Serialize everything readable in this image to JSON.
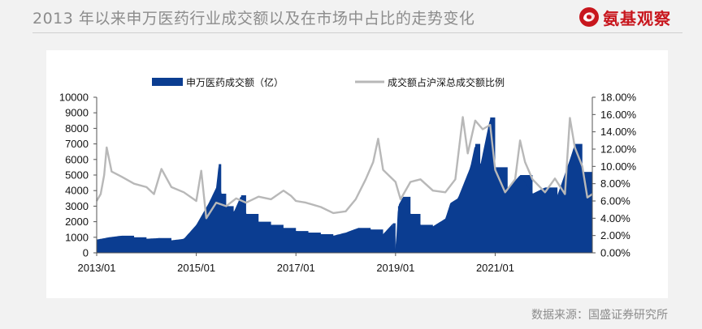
{
  "header": {
    "title": "2013 年以来申万医药行业成交额以及在市场中占比的走势变化",
    "brand": "氨基观察",
    "brand_icon": "swirl-logo-icon"
  },
  "footer": {
    "source": "数据来源：国盛证券研究所"
  },
  "colors": {
    "bar": "#0b3d91",
    "line": "#b8b8b8",
    "brand": "#c8161d",
    "title": "#8c8c8c"
  },
  "chart_data": {
    "type": "bar",
    "grid": false,
    "legend_position": "top",
    "x_ticks": [
      "2013/01",
      "2015/01",
      "2017/01",
      "2019/01",
      "2021/01"
    ],
    "x_range": [
      2013.0,
      2022.95
    ],
    "y_left": {
      "range": [
        0,
        10000
      ],
      "ticks": [
        "10000",
        "9000",
        "8000",
        "7000",
        "6000",
        "5000",
        "4000",
        "3000",
        "2000",
        "1000",
        "0"
      ]
    },
    "y_right": {
      "range": [
        0,
        18
      ],
      "ticks": [
        "18.00%",
        "16.00%",
        "14.00%",
        "12.00%",
        "10.00%",
        "8.00%",
        "6.00%",
        "4.00%",
        "2.00%",
        "0.00%"
      ]
    },
    "series": [
      {
        "name": "申万医药成交额（亿）",
        "kind": "bar",
        "axis": "left",
        "points": [
          [
            2013.0,
            850
          ],
          [
            2013.25,
            1000
          ],
          [
            2013.5,
            1100
          ],
          [
            2013.75,
            1000
          ],
          [
            2014.0,
            900
          ],
          [
            2014.25,
            950
          ],
          [
            2014.5,
            800
          ],
          [
            2014.75,
            900
          ],
          [
            2015.0,
            1800
          ],
          [
            2015.25,
            3200
          ],
          [
            2015.4,
            4200
          ],
          [
            2015.45,
            5700
          ],
          [
            2015.5,
            3800
          ],
          [
            2015.6,
            3000
          ],
          [
            2015.75,
            2600
          ],
          [
            2015.9,
            3700
          ],
          [
            2016.0,
            2500
          ],
          [
            2016.25,
            2000
          ],
          [
            2016.5,
            1800
          ],
          [
            2016.75,
            1600
          ],
          [
            2017.0,
            1400
          ],
          [
            2017.25,
            1300
          ],
          [
            2017.5,
            1200
          ],
          [
            2017.75,
            1100
          ],
          [
            2018.0,
            1300
          ],
          [
            2018.25,
            1600
          ],
          [
            2018.5,
            1500
          ],
          [
            2018.75,
            1200
          ],
          [
            2018.95,
            1900
          ],
          [
            2019.0,
            0
          ],
          [
            2019.05,
            3000
          ],
          [
            2019.15,
            3600
          ],
          [
            2019.3,
            2500
          ],
          [
            2019.5,
            1800
          ],
          [
            2019.75,
            1700
          ],
          [
            2020.0,
            2200
          ],
          [
            2020.1,
            3200
          ],
          [
            2020.25,
            3500
          ],
          [
            2020.5,
            5500
          ],
          [
            2020.6,
            7000
          ],
          [
            2020.7,
            5600
          ],
          [
            2020.9,
            8700
          ],
          [
            2021.0,
            5500
          ],
          [
            2021.25,
            4100
          ],
          [
            2021.5,
            5000
          ],
          [
            2021.75,
            3800
          ],
          [
            2022.0,
            4200
          ],
          [
            2022.25,
            3700
          ],
          [
            2022.5,
            6000
          ],
          [
            2022.6,
            7000
          ],
          [
            2022.75,
            5200
          ],
          [
            2022.95,
            3100
          ]
        ]
      },
      {
        "name": "成交额占沪深总成交额比例",
        "kind": "line",
        "axis": "right",
        "points": [
          [
            2013.0,
            6.0
          ],
          [
            2013.08,
            6.8
          ],
          [
            2013.15,
            9.0
          ],
          [
            2013.2,
            12.2
          ],
          [
            2013.3,
            9.4
          ],
          [
            2013.5,
            8.8
          ],
          [
            2013.75,
            8.0
          ],
          [
            2014.0,
            7.6
          ],
          [
            2014.15,
            6.8
          ],
          [
            2014.3,
            9.7
          ],
          [
            2014.5,
            7.6
          ],
          [
            2014.75,
            7.0
          ],
          [
            2015.0,
            6.0
          ],
          [
            2015.1,
            9.5
          ],
          [
            2015.2,
            4.0
          ],
          [
            2015.4,
            5.8
          ],
          [
            2015.6,
            5.4
          ],
          [
            2015.8,
            6.3
          ],
          [
            2016.0,
            5.8
          ],
          [
            2016.25,
            6.5
          ],
          [
            2016.5,
            6.2
          ],
          [
            2016.75,
            7.2
          ],
          [
            2016.9,
            6.6
          ],
          [
            2017.0,
            6.0
          ],
          [
            2017.2,
            5.8
          ],
          [
            2017.5,
            5.3
          ],
          [
            2017.75,
            4.6
          ],
          [
            2018.0,
            4.8
          ],
          [
            2018.2,
            6.2
          ],
          [
            2018.4,
            8.5
          ],
          [
            2018.55,
            10.5
          ],
          [
            2018.65,
            13.2
          ],
          [
            2018.75,
            9.6
          ],
          [
            2019.0,
            8.2
          ],
          [
            2019.1,
            6.2
          ],
          [
            2019.3,
            8.2
          ],
          [
            2019.5,
            8.5
          ],
          [
            2019.75,
            7.2
          ],
          [
            2020.0,
            7.0
          ],
          [
            2020.2,
            8.5
          ],
          [
            2020.35,
            15.7
          ],
          [
            2020.45,
            11.5
          ],
          [
            2020.6,
            15.3
          ],
          [
            2020.75,
            14.3
          ],
          [
            2020.9,
            14.8
          ],
          [
            2021.0,
            9.6
          ],
          [
            2021.2,
            7.0
          ],
          [
            2021.4,
            8.5
          ],
          [
            2021.5,
            13.0
          ],
          [
            2021.6,
            10.5
          ],
          [
            2021.75,
            8.5
          ],
          [
            2022.0,
            7.0
          ],
          [
            2022.2,
            8.6
          ],
          [
            2022.4,
            6.8
          ],
          [
            2022.5,
            15.6
          ],
          [
            2022.6,
            12.2
          ],
          [
            2022.75,
            10.0
          ],
          [
            2022.85,
            6.4
          ],
          [
            2022.95,
            6.8
          ]
        ]
      }
    ]
  }
}
